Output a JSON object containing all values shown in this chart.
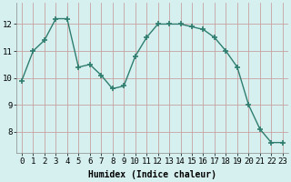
{
  "x": [
    0,
    1,
    2,
    3,
    4,
    5,
    6,
    7,
    8,
    9,
    10,
    11,
    12,
    13,
    14,
    15,
    16,
    17,
    18,
    19,
    20,
    21,
    22,
    23
  ],
  "y": [
    9.9,
    11.0,
    11.4,
    12.2,
    12.2,
    10.4,
    10.5,
    10.1,
    9.6,
    9.7,
    10.8,
    11.5,
    12.0,
    12.0,
    12.0,
    11.9,
    11.8,
    11.5,
    11.0,
    10.4,
    9.0,
    8.1,
    7.6,
    7.6
  ],
  "line_color": "#2e7d6e",
  "marker": "+",
  "markersize": 4,
  "linewidth": 1.0,
  "bg_color": "#d6f0f0",
  "grid_color": "#c8a0a0",
  "xlabel": "Humidex (Indice chaleur)",
  "xlabel_fontsize": 7,
  "xtick_labels": [
    "0",
    "1",
    "2",
    "3",
    "4",
    "5",
    "6",
    "7",
    "8",
    "9",
    "10",
    "11",
    "12",
    "13",
    "14",
    "15",
    "16",
    "17",
    "18",
    "19",
    "20",
    "21",
    "22",
    "23"
  ],
  "ytick_vals": [
    8,
    9,
    10,
    11,
    12
  ],
  "ylim": [
    7.2,
    12.8
  ],
  "xlim": [
    -0.5,
    23.5
  ],
  "tick_fontsize": 6.5
}
